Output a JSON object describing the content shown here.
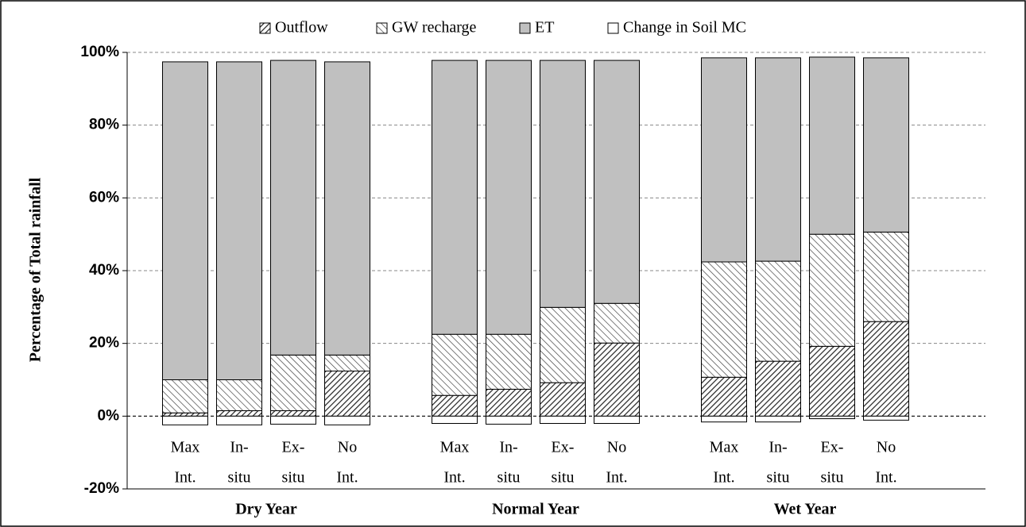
{
  "chart_data": {
    "type": "stacked-bar",
    "y_label": "Percentage of Total rainfall",
    "groups": [
      "Dry Year",
      "Normal Year",
      "Wet Year"
    ],
    "categories": [
      [
        "Max",
        "Int."
      ],
      [
        "In-",
        "situ"
      ],
      [
        "Ex-",
        "situ"
      ],
      [
        "No",
        "Int."
      ],
      [
        "Max",
        "Int."
      ],
      [
        "In-",
        "situ"
      ],
      [
        "Ex-",
        "situ"
      ],
      [
        "No",
        "Int."
      ],
      [
        "Max",
        "Int."
      ],
      [
        "In-",
        "situ"
      ],
      [
        "Ex-",
        "situ"
      ],
      [
        "No",
        "Int."
      ]
    ],
    "series": [
      {
        "name": "Outflow",
        "color": "#222222",
        "hatch": "forward",
        "values": [
          0.9,
          1.5,
          1.5,
          12.4,
          5.7,
          7.4,
          9.2,
          20.1,
          10.7,
          15.1,
          19.2,
          26.0
        ]
      },
      {
        "name": "GW recharge",
        "color": "#333333",
        "hatch": "backward",
        "values": [
          9.1,
          8.5,
          15.3,
          4.4,
          16.8,
          15.1,
          20.7,
          10.9,
          31.7,
          27.5,
          30.8,
          24.6
        ]
      },
      {
        "name": "ET",
        "color": "#c0c0c0",
        "values": [
          87.4,
          87.4,
          81.0,
          80.6,
          75.3,
          75.3,
          67.9,
          66.8,
          56.1,
          55.9,
          48.7,
          47.9
        ]
      },
      {
        "name": "Change in Soil MC",
        "color": "#ffffff",
        "values": [
          -2.4,
          -2.4,
          -2.2,
          -2.4,
          -2.0,
          -2.2,
          -2.0,
          -2.0,
          -1.6,
          -1.6,
          -0.7,
          -1.1
        ]
      }
    ],
    "ylim": [
      -20,
      100
    ],
    "yticks": [
      {
        "value": -20,
        "label": "-20%"
      },
      {
        "value": 0,
        "label": "0%"
      },
      {
        "value": 20,
        "label": "20%"
      },
      {
        "value": 40,
        "label": "40%"
      },
      {
        "value": 60,
        "label": "60%"
      },
      {
        "value": 80,
        "label": "80%"
      },
      {
        "value": 100,
        "label": "100%"
      }
    ],
    "grid": true,
    "legend": "top"
  }
}
